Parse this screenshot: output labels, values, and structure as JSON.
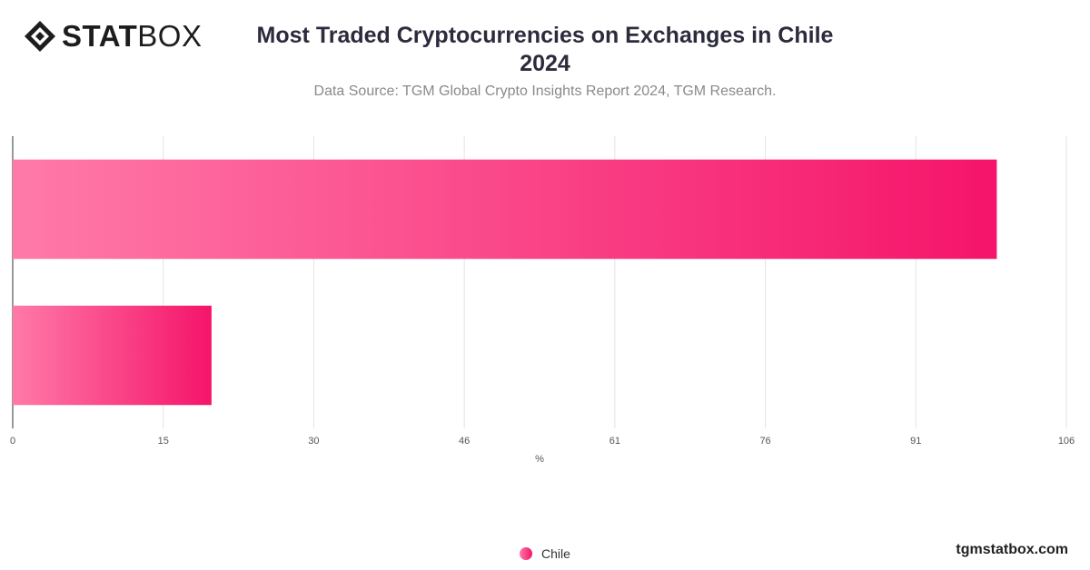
{
  "logo": {
    "bold_text": "STAT",
    "light_text": "BOX"
  },
  "header": {
    "title_line1": "Most Traded Cryptocurrencies on Exchanges in Chile",
    "title_line2": "2024",
    "subtitle": "Data Source: TGM Global Crypto Insights Report 2024, TGM Research."
  },
  "chart_data": {
    "type": "bar",
    "orientation": "horizontal",
    "categories": [
      "",
      ""
    ],
    "series": [
      {
        "name": "Chile",
        "values": [
          99,
          20
        ]
      }
    ],
    "xlabel": "%",
    "xlim": [
      0,
      106
    ],
    "xticks": [
      "0",
      "15",
      "30",
      "46",
      "61",
      "76",
      "91",
      "106"
    ],
    "grid": true,
    "legend_position": "bottom-center",
    "colors": {
      "bar_start": "#ff7aa8",
      "bar_end": "#f5146a"
    }
  },
  "legend": {
    "label": "Chile"
  },
  "footer": {
    "brand": "tgmstatbox.com"
  }
}
